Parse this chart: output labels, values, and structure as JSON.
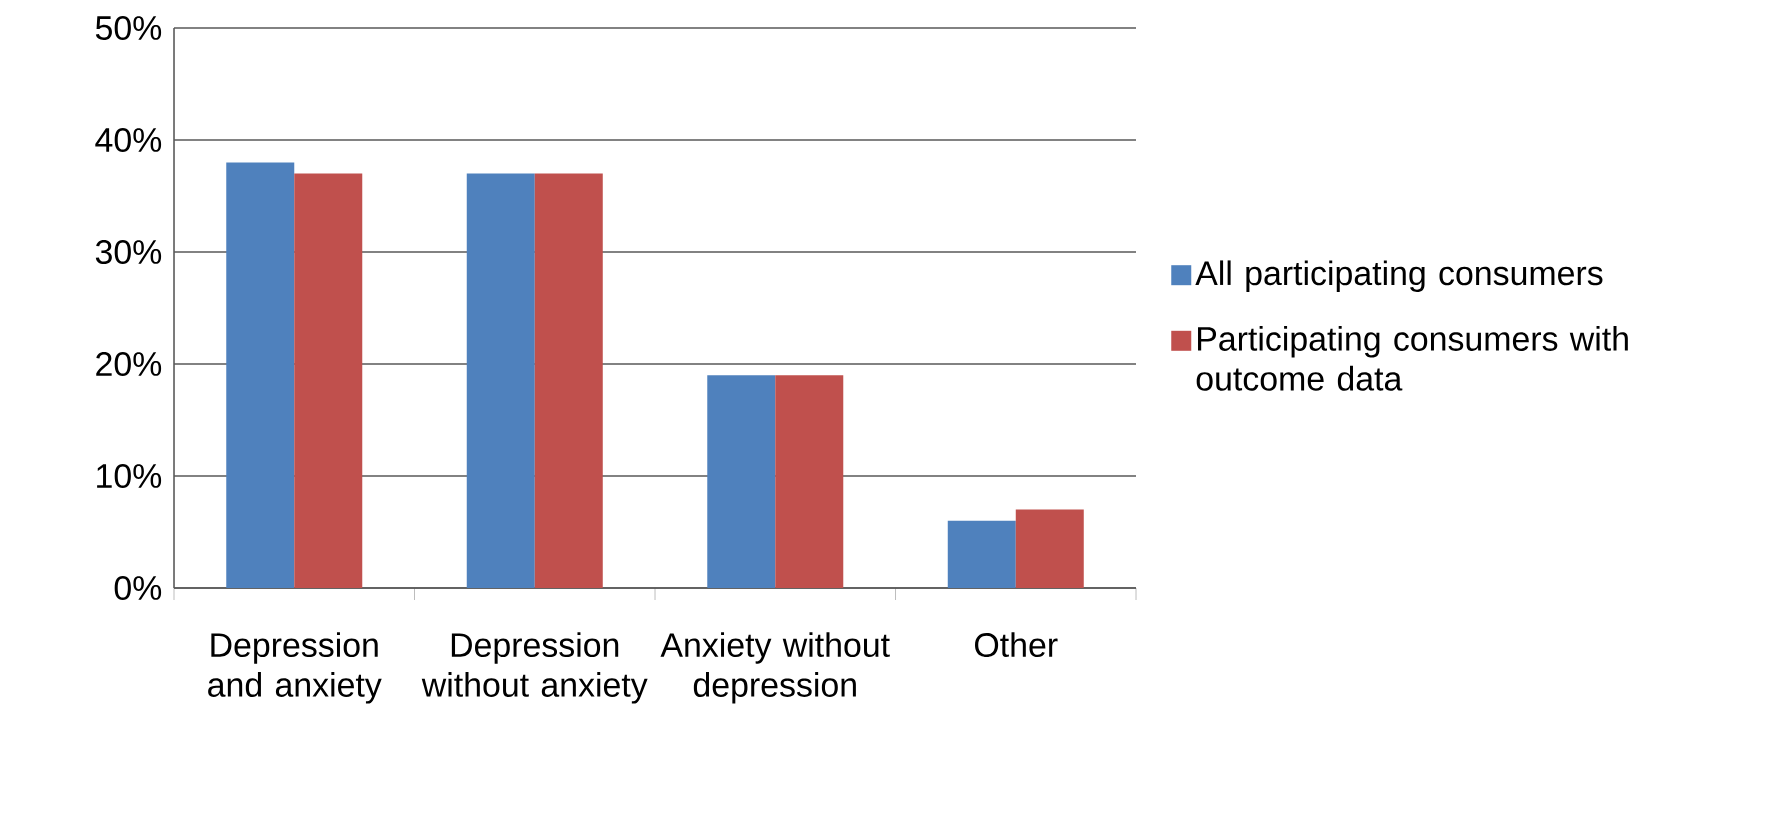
{
  "chart_data": {
    "type": "bar",
    "categories": [
      "Depression and anxiety",
      "Depression without anxiety",
      "Anxiety without depression",
      "Other"
    ],
    "series": [
      {
        "name": "All participating consumers",
        "color": "#4f81bd",
        "values": [
          38,
          37,
          19,
          6
        ]
      },
      {
        "name": "Participating consumers with outcome data",
        "color": "#c0504d",
        "values": [
          37,
          37,
          19,
          7
        ]
      }
    ],
    "ylim": [
      0,
      50
    ],
    "yticks": [
      {
        "value": 0,
        "label": "0%"
      },
      {
        "value": 10,
        "label": "10%"
      },
      {
        "value": 20,
        "label": "20%"
      },
      {
        "value": 30,
        "label": "30%"
      },
      {
        "value": 40,
        "label": "40%"
      },
      {
        "value": 50,
        "label": "50%"
      }
    ],
    "grid": "y",
    "legend": "right"
  }
}
